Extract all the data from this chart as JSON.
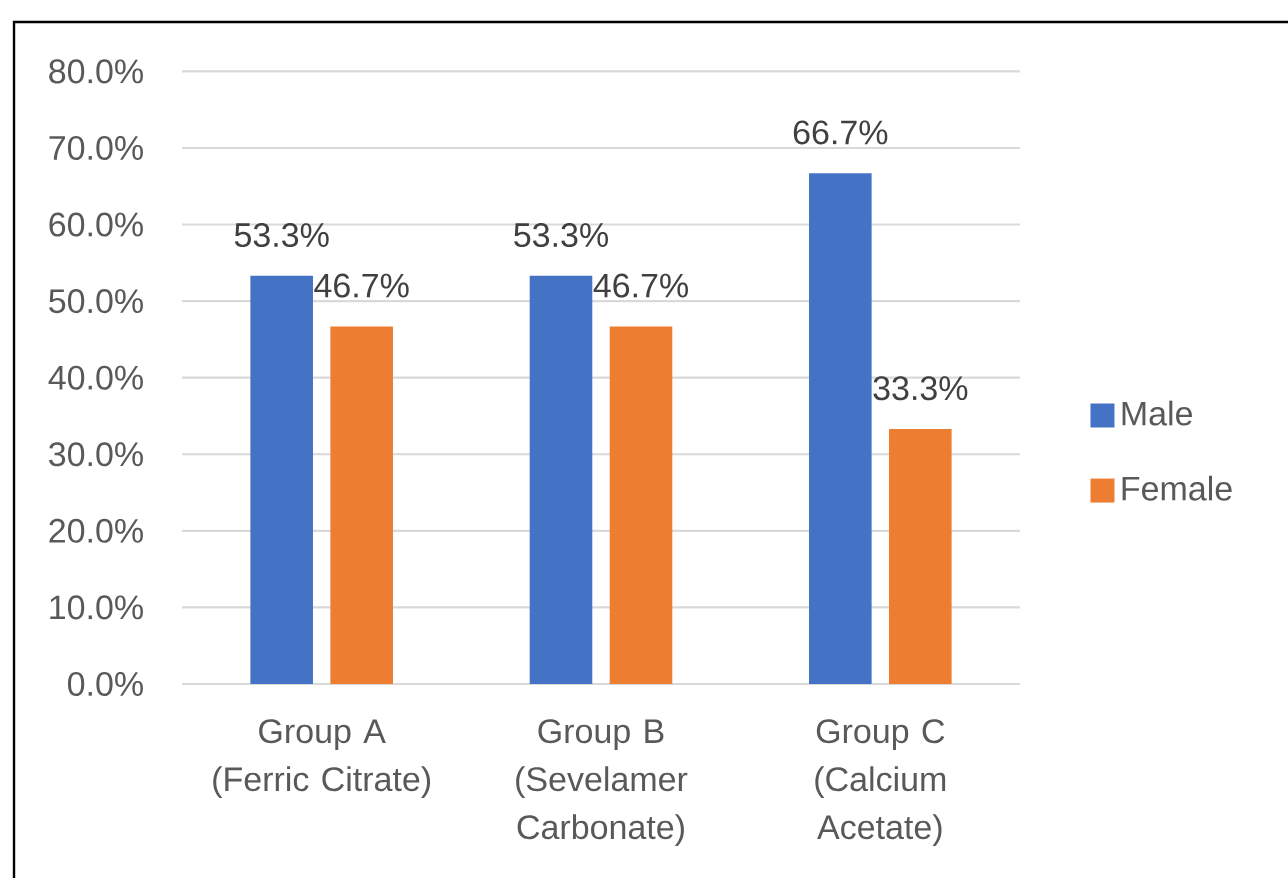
{
  "chart_data": {
    "type": "bar",
    "categories": [
      "Group A (Ferric Citrate)",
      "Group B (Sevelamer Carbonate)",
      "Group C (Calcium Acetate)"
    ],
    "series": [
      {
        "name": "Male",
        "color": "#4472c4",
        "values": [
          53.3,
          53.3,
          66.7
        ],
        "value_labels": [
          "53.3%",
          "53.3%",
          "66.7%"
        ]
      },
      {
        "name": "Female",
        "color": "#ed7d31",
        "values": [
          46.7,
          46.7,
          33.3
        ],
        "value_labels": [
          "46.7%",
          "46.7%",
          "33.3%"
        ]
      }
    ],
    "ylim": [
      0,
      80
    ],
    "yticks": [
      {
        "value": 0,
        "label": "0.0%"
      },
      {
        "value": 10,
        "label": "10.0%"
      },
      {
        "value": 20,
        "label": "20.0%"
      },
      {
        "value": 30,
        "label": "30.0%"
      },
      {
        "value": 40,
        "label": "40.0%"
      },
      {
        "value": 50,
        "label": "50.0%"
      },
      {
        "value": 60,
        "label": "60.0%"
      },
      {
        "value": 70,
        "label": "70.0%"
      },
      {
        "value": 80,
        "label": "80.0%"
      }
    ],
    "grid": "y",
    "legend": "right"
  }
}
